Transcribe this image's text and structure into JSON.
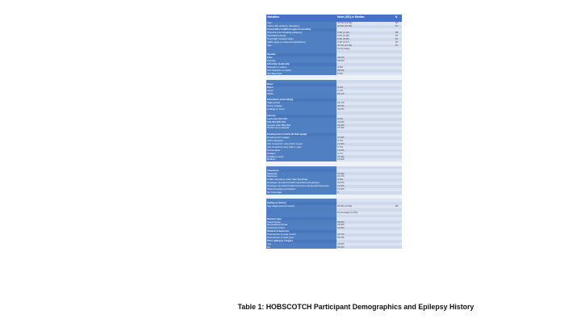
{
  "caption": "Table 1: HOBSCOTCH Participant Demographics and Epilepsy History",
  "colors": {
    "header_blue": "#4472C4",
    "row_blue": "#5080C2",
    "section_blue": "#4877BD",
    "band_light": "#DCE3F2",
    "band_dark": "#CFD9EC",
    "gap_row": "#EDF1F8"
  },
  "table": {
    "columns": [
      "Variables",
      "Mean (SD) or Median",
      "N"
    ],
    "rows": [
      {
        "t": "data",
        "label": "Age",
        "value": "47.60 (14.04)",
        "n": "87"
      },
      {
        "t": "data",
        "label": "Years with epilepsy (duration)",
        "value": "30.58 (15.46)",
        "n": "87"
      },
      {
        "t": "section",
        "label": "Comorbid conditions (past 6 months)",
        "value": "",
        "n": ""
      },
      {
        "t": "data",
        "label": "Physical (not including epilepsy)",
        "value": "3.00 (1.40)",
        "n": "86"
      },
      {
        "t": "data",
        "label": "Mental/emotional",
        "value": "3.00 (2.40)",
        "n": "87"
      },
      {
        "t": "data",
        "label": "Overnight hospital stays",
        "value": "0.50 (0.58)",
        "n": "87"
      },
      {
        "t": "data",
        "label": "AEDs (type or missed medications)",
        "value": "3.00 (1.67)",
        "n": "87"
      },
      {
        "t": "data",
        "label": "Age",
        "value": "47.60 (14.04)",
        "n": "87"
      },
      {
        "t": "data",
        "label": "",
        "value": "Percentage",
        "n": ""
      },
      {
        "t": "blank",
        "label": "",
        "value": "",
        "n": ""
      },
      {
        "t": "section",
        "label": "Gender",
        "value": "",
        "n": ""
      },
      {
        "t": "data",
        "label": "Male",
        "value": "40.2%",
        "n": ""
      },
      {
        "t": "data",
        "label": "Female",
        "value": "59.8%",
        "n": ""
      },
      {
        "t": "section",
        "label": "Ethnicity (Latino/a)",
        "value": "",
        "n": ""
      },
      {
        "t": "data",
        "label": "Hispanic or Latino",
        "value": "4.6%",
        "n": ""
      },
      {
        "t": "data",
        "label": "Not Hispanic or Latino",
        "value": "88.5%",
        "n": ""
      },
      {
        "t": "data",
        "label": "Not Reported",
        "value": "6.9%",
        "n": ""
      },
      {
        "t": "gap"
      },
      {
        "t": "blank",
        "label": "",
        "value": "",
        "n": ""
      },
      {
        "t": "section",
        "label": "Race",
        "value": "",
        "n": ""
      },
      {
        "t": "data",
        "label": "Black",
        "value": "8.0%",
        "n": ""
      },
      {
        "t": "data",
        "label": "Asian",
        "value": "1.1%",
        "n": ""
      },
      {
        "t": "data",
        "label": "White",
        "value": "85.1%",
        "n": ""
      },
      {
        "t": "blank",
        "label": "",
        "value": "",
        "n": ""
      },
      {
        "t": "section",
        "label": "Education (schooling)",
        "value": "",
        "n": ""
      },
      {
        "t": "data",
        "label": "High school",
        "value": "24.1%",
        "n": ""
      },
      {
        "t": "data",
        "label": "Some college",
        "value": "35.6%",
        "n": ""
      },
      {
        "t": "data",
        "label": "College or more",
        "value": "40.2%",
        "n": ""
      },
      {
        "t": "blank",
        "label": "",
        "value": "",
        "n": ""
      },
      {
        "t": "section",
        "label": "Income",
        "value": "",
        "n": ""
      },
      {
        "t": "data",
        "label": "Less than $25,000",
        "value": "8.0%",
        "n": ""
      },
      {
        "t": "data",
        "label": "$25,000-$50,000",
        "value": "23.0%",
        "n": ""
      },
      {
        "t": "data",
        "label": "Greater than $50,000",
        "value": "31.0%",
        "n": ""
      },
      {
        "t": "data",
        "label": "Prefer not to answer",
        "value": "37.9%",
        "n": ""
      },
      {
        "t": "blank",
        "label": "",
        "value": "",
        "n": ""
      },
      {
        "t": "section",
        "label": "Employment (check all that apply)",
        "value": "",
        "n": ""
      },
      {
        "t": "data",
        "label": "Employed for wages",
        "value": "37.9%",
        "n": ""
      },
      {
        "t": "data",
        "label": "Self-employed",
        "value": "5.7%",
        "n": ""
      },
      {
        "t": "data",
        "label": "Out of work for more than 1 year",
        "value": "10.3%",
        "n": ""
      },
      {
        "t": "data",
        "label": "Out of work for less than 1 year",
        "value": "5.7%",
        "n": ""
      },
      {
        "t": "data",
        "label": "Homemaker",
        "value": "10.3%",
        "n": ""
      },
      {
        "t": "data",
        "label": "Student",
        "value": "5.7%",
        "n": ""
      },
      {
        "t": "data",
        "label": "Unable to work",
        "value": "37.9%",
        "n": ""
      },
      {
        "t": "data",
        "label": "Retired",
        "value": "10.3%",
        "n": ""
      },
      {
        "t": "gap"
      },
      {
        "t": "blank",
        "label": "",
        "value": "",
        "n": ""
      },
      {
        "t": "section",
        "label": "Insurance",
        "value": "",
        "n": ""
      },
      {
        "t": "data",
        "label": "Medicaid",
        "value": "37.9%",
        "n": ""
      },
      {
        "t": "data",
        "label": "Medicare",
        "value": "20.7%",
        "n": ""
      },
      {
        "t": "data",
        "label": "Public insurance other than Medicaid",
        "value": "4.6%",
        "n": ""
      },
      {
        "t": "data",
        "label": "Employer provided health insurance (employee)",
        "value": "32.2%",
        "n": ""
      },
      {
        "t": "data",
        "label": "Employer provided health insurance (dependent/spouse)",
        "value": "10.3%",
        "n": ""
      },
      {
        "t": "data",
        "label": "Other/privately purchased",
        "value": "10.3%",
        "n": ""
      },
      {
        "t": "data",
        "label": "No Coverage",
        "value": "0",
        "n": ""
      },
      {
        "t": "gap"
      },
      {
        "t": "blank",
        "label": "",
        "value": "",
        "n": ""
      },
      {
        "t": "section",
        "label": "Epilepsy History",
        "value": "",
        "n": ""
      },
      {
        "t": "data",
        "label": "Age diagnosed (of onset)",
        "value": "20.90 (14.84)",
        "n": "86"
      },
      {
        "t": "blank",
        "label": "",
        "value": "",
        "n": ""
      },
      {
        "t": "data",
        "label": "",
        "value": "Percentage (n=87)",
        "n": ""
      },
      {
        "t": "blank",
        "label": "",
        "value": "",
        "n": ""
      },
      {
        "t": "section",
        "label": "Seizure type",
        "value": "",
        "n": ""
      },
      {
        "t": "data",
        "label": "Focal Onset",
        "value": "50.6%",
        "n": ""
      },
      {
        "t": "data",
        "label": "Generalized Onset",
        "value": "29.9%",
        "n": ""
      },
      {
        "t": "data",
        "label": "Unknown Onset",
        "value": "19.5%",
        "n": ""
      },
      {
        "t": "section",
        "label": "Seizure Frequency",
        "value": "",
        "n": ""
      },
      {
        "t": "data",
        "label": "Had seizure in past month",
        "value": "43.7%",
        "n": ""
      },
      {
        "t": "data",
        "label": "Had seizure in past year",
        "value": "56.3%",
        "n": ""
      },
      {
        "t": "section",
        "label": "Prior epilepsy surgery",
        "value": "",
        "n": ""
      },
      {
        "t": "data",
        "label": "Yes",
        "value": "19.5%",
        "n": ""
      },
      {
        "t": "data",
        "label": "No",
        "value": "80.5%",
        "n": ""
      }
    ]
  }
}
